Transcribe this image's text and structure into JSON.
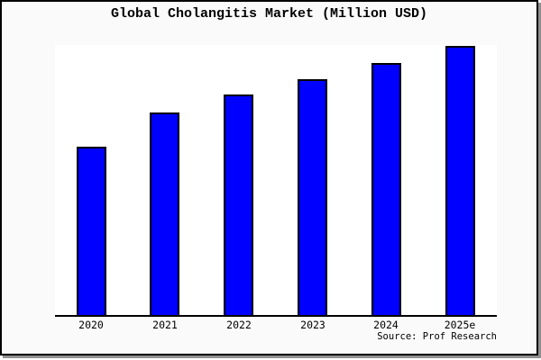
{
  "title": "Global Cholangitis Market (Million USD)",
  "source_note": "Source: Prof Research",
  "colors": {
    "bar_fill": "#0000ff",
    "bar_edge": "#000000",
    "figure_background": "#fafafa",
    "plot_background": "#ffffff",
    "border": "#000000",
    "shadow": "#909090",
    "text": "#000000"
  },
  "chart_data": {
    "type": "bar",
    "title": "Global Cholangitis Market (Million USD)",
    "categories": [
      "2020",
      "2021",
      "2022",
      "2023",
      "2024",
      "2025e"
    ],
    "values": [
      62.8,
      75.3,
      81.9,
      87.8,
      93.8,
      100
    ],
    "value_axis_note": "no y-axis, tick labels, gridlines or data labels shown; values are relative bar heights with tallest bar (2025e) = 100",
    "xlabel": "",
    "ylabel": "",
    "legend": "none",
    "grid": false,
    "source": "Source: Prof Research"
  }
}
